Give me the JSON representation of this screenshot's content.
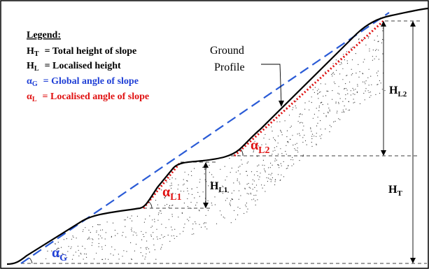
{
  "legend": {
    "heading": "Legend:",
    "items": [
      {
        "symbol": "H",
        "sub": "T",
        "text": "= Total height of slope",
        "color": "#000000"
      },
      {
        "symbol": "H",
        "sub": "L",
        "text": "= Localised height",
        "color": "#000000"
      },
      {
        "symbol": "α",
        "sub": "G",
        "text": "= Global angle of slope",
        "color": "#1f3fd6"
      },
      {
        "symbol": "α",
        "sub": "L",
        "text": "= Localised angle of slope",
        "color": "#e01010"
      }
    ]
  },
  "callout": {
    "line1": "Ground",
    "line2": "Profile"
  },
  "labels": {
    "ht": {
      "main": "H",
      "sub": "T"
    },
    "hl1": {
      "main": "H",
      "sub": "L1"
    },
    "hl2": {
      "main": "H",
      "sub": "L2"
    },
    "ag": {
      "main": "α",
      "sub": "G"
    },
    "al1": {
      "main": "α",
      "sub": "L1"
    },
    "al2": {
      "main": "α",
      "sub": "L2"
    }
  },
  "colors": {
    "ground": "#000000",
    "global": "#2a5bd6",
    "local": "#e01010",
    "text_blue": "#1f3fd6",
    "text_red": "#e01010"
  }
}
